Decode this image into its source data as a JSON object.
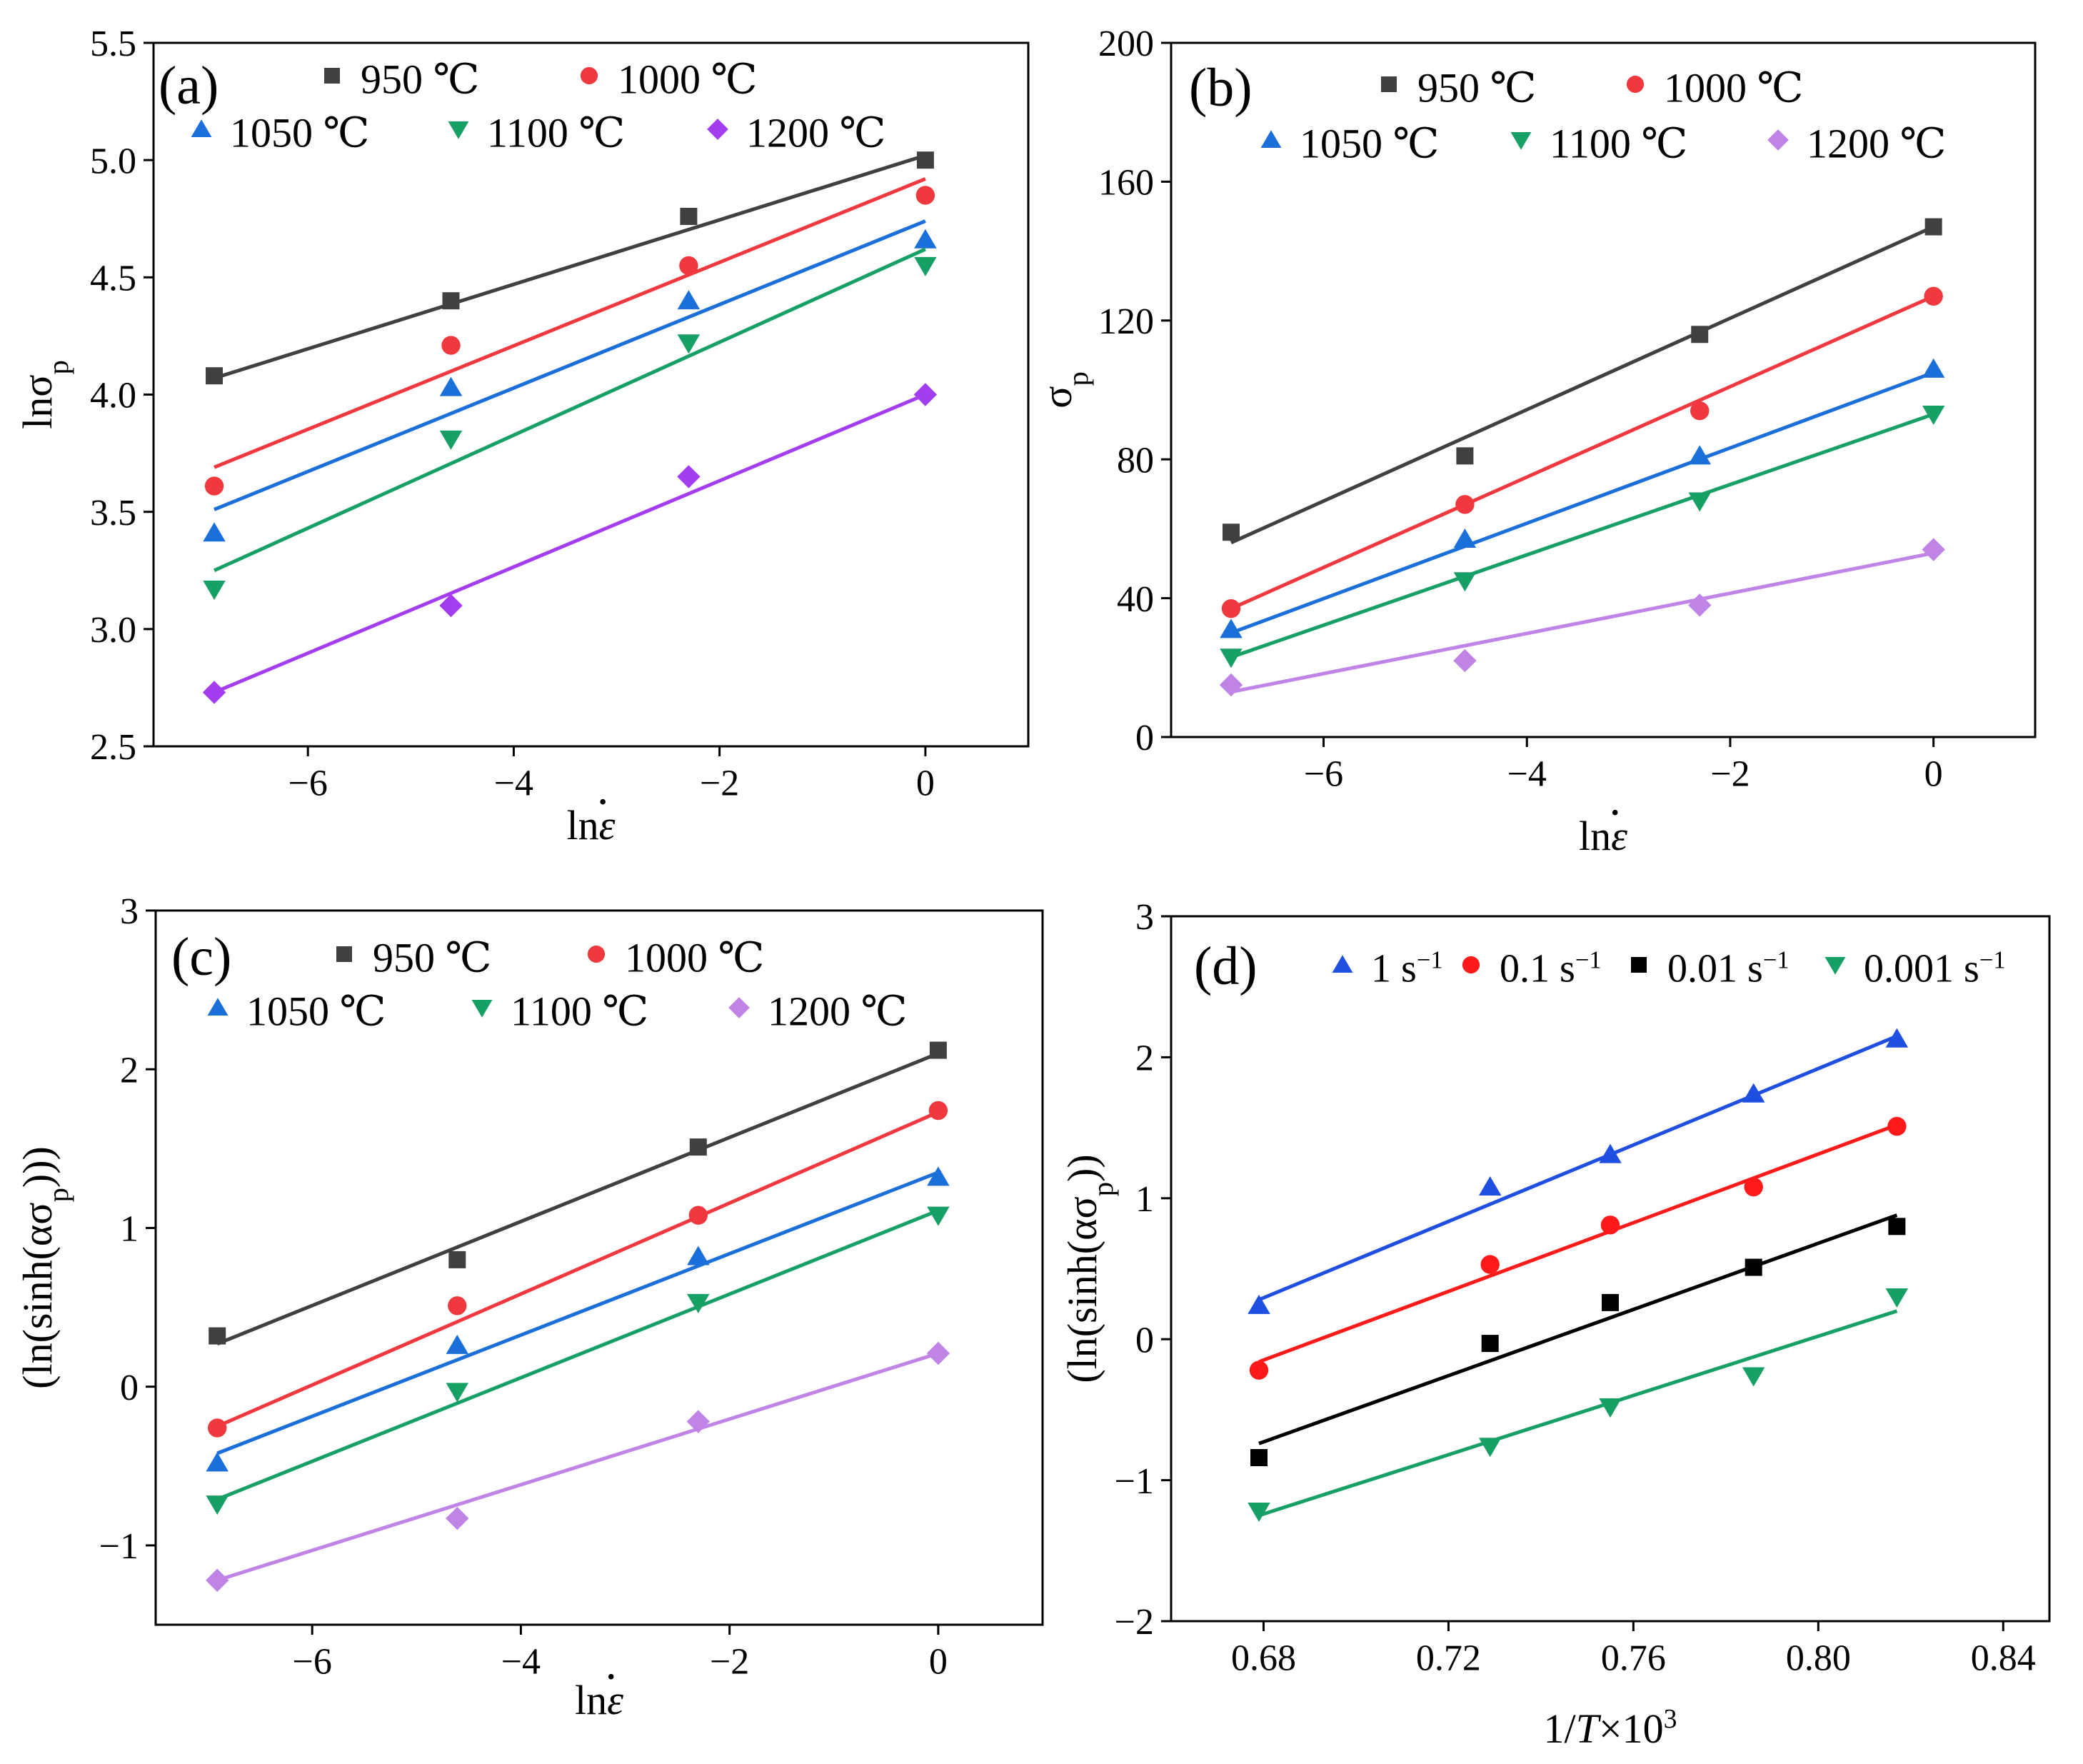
{
  "chart_data": [
    {
      "panel_label": "(a)",
      "type": "scatter",
      "xlabel_base": "ln",
      "xlabel_var": "ε",
      "xlabel_dot": "•",
      "ylabel_base": "lnσ",
      "ylabel_sub": "p",
      "xlim": [
        -7.5,
        1.0
      ],
      "ylim": [
        2.5,
        5.5
      ],
      "xticks": [
        -6,
        -4,
        -2,
        0
      ],
      "xticklabels": [
        "−6",
        "−4",
        "−2",
        "0"
      ],
      "yticks": [
        2.5,
        3.0,
        3.5,
        4.0,
        4.5,
        5.0,
        5.5
      ],
      "yticklabels": [
        "2.5",
        "3.0",
        "3.5",
        "4.0",
        "4.5",
        "5.0",
        "5.5"
      ],
      "legend": [
        {
          "row": 0,
          "col": 0,
          "marker": "square",
          "color": "#404040",
          "label": "950 ℃"
        },
        {
          "row": 0,
          "col": 1,
          "marker": "circle",
          "color": "#f0393e",
          "label": "1000 ℃"
        },
        {
          "row": 1,
          "col": 0,
          "marker": "triangle-up",
          "color": "#1a6fd8",
          "label": "1050 ℃"
        },
        {
          "row": 1,
          "col": 1,
          "marker": "triangle-down",
          "color": "#17a065",
          "label": "1100 ℃"
        },
        {
          "row": 1,
          "col": 2,
          "marker": "diamond",
          "color": "#a43df0",
          "label": "1200 ℃"
        }
      ],
      "series": [
        {
          "name": "950 ℃",
          "marker": "square",
          "color": "#404040",
          "x": [
            -6.91,
            -4.61,
            -2.3,
            0
          ],
          "y": [
            4.08,
            4.4,
            4.76,
            5.0
          ],
          "fit": [
            [
              -6.91,
              4.07
            ],
            [
              0,
              5.02
            ]
          ]
        },
        {
          "name": "1000 ℃",
          "marker": "circle",
          "color": "#f0393e",
          "x": [
            -6.91,
            -4.61,
            -2.3,
            0
          ],
          "y": [
            3.61,
            4.21,
            4.55,
            4.85
          ],
          "fit": [
            [
              -6.91,
              3.69
            ],
            [
              0,
              4.92
            ]
          ]
        },
        {
          "name": "1050 ℃",
          "marker": "triangle-up",
          "color": "#1a6fd8",
          "x": [
            -6.91,
            -4.61,
            -2.3,
            0
          ],
          "y": [
            3.41,
            4.03,
            4.4,
            4.66
          ],
          "fit": [
            [
              -6.91,
              3.51
            ],
            [
              0,
              4.74
            ]
          ]
        },
        {
          "name": "1100 ℃",
          "marker": "triangle-down",
          "color": "#17a065",
          "x": [
            -6.91,
            -4.61,
            -2.3,
            0
          ],
          "y": [
            3.17,
            3.81,
            4.22,
            4.55
          ],
          "fit": [
            [
              -6.91,
              3.25
            ],
            [
              0,
              4.62
            ]
          ]
        },
        {
          "name": "1200 ℃",
          "marker": "diamond",
          "color": "#a43df0",
          "x": [
            -6.91,
            -4.61,
            -2.3,
            0
          ],
          "y": [
            2.73,
            3.1,
            3.65,
            4.0
          ],
          "fit": [
            [
              -6.91,
              2.73
            ],
            [
              0,
              4.0
            ]
          ]
        }
      ]
    },
    {
      "panel_label": "(b)",
      "type": "scatter",
      "xlabel_base": "ln",
      "xlabel_var": "ε",
      "xlabel_dot": "•",
      "ylabel_base": "σ",
      "ylabel_sub": "p",
      "xlim": [
        -7.5,
        1.0
      ],
      "ylim": [
        0,
        200
      ],
      "xticks": [
        -6,
        -4,
        -2,
        0
      ],
      "xticklabels": [
        "−6",
        "−4",
        "−2",
        "0"
      ],
      "yticks": [
        0,
        40,
        80,
        120,
        160,
        200
      ],
      "yticklabels": [
        "0",
        "40",
        "80",
        "120",
        "160",
        "200"
      ],
      "legend": [
        {
          "row": 0,
          "col": 0,
          "marker": "square",
          "color": "#404040",
          "label": "950 ℃"
        },
        {
          "row": 0,
          "col": 1,
          "marker": "circle",
          "color": "#f0393e",
          "label": "1000 ℃"
        },
        {
          "row": 1,
          "col": 0,
          "marker": "triangle-up",
          "color": "#1a6fd8",
          "label": "1050 ℃"
        },
        {
          "row": 1,
          "col": 1,
          "marker": "triangle-down",
          "color": "#17a065",
          "label": "1100 ℃"
        },
        {
          "row": 1,
          "col": 2,
          "marker": "diamond",
          "color": "#c083e6",
          "label": "1200 ℃"
        }
      ],
      "series": [
        {
          "name": "950 ℃",
          "marker": "square",
          "color": "#404040",
          "x": [
            -6.91,
            -4.61,
            -2.3,
            0
          ],
          "y": [
            59,
            81,
            116,
            147
          ],
          "fit": [
            [
              -6.91,
              56
            ],
            [
              0,
              147
            ]
          ]
        },
        {
          "name": "1000 ℃",
          "marker": "circle",
          "color": "#f0393e",
          "x": [
            -6.91,
            -4.61,
            -2.3,
            0
          ],
          "y": [
            37,
            67,
            94,
            127
          ],
          "fit": [
            [
              -6.91,
              37
            ],
            [
              0,
              127
            ]
          ]
        },
        {
          "name": "1050 ℃",
          "marker": "triangle-up",
          "color": "#1a6fd8",
          "x": [
            -6.91,
            -4.61,
            -2.3,
            0
          ],
          "y": [
            31,
            57,
            81,
            106
          ],
          "fit": [
            [
              -6.91,
              30
            ],
            [
              0,
              105
            ]
          ]
        },
        {
          "name": "1100 ℃",
          "marker": "triangle-down",
          "color": "#17a065",
          "x": [
            -6.91,
            -4.61,
            -2.3,
            0
          ],
          "y": [
            23,
            45,
            68,
            93
          ],
          "fit": [
            [
              -6.91,
              23
            ],
            [
              0,
              93
            ]
          ]
        },
        {
          "name": "1200 ℃",
          "marker": "diamond",
          "color": "#c083e6",
          "x": [
            -6.91,
            -4.61,
            -2.3,
            0
          ],
          "y": [
            15,
            22,
            38,
            54
          ],
          "fit": [
            [
              -6.91,
              13
            ],
            [
              0,
              53
            ]
          ]
        }
      ]
    },
    {
      "panel_label": "(c)",
      "type": "scatter",
      "xlabel_base": "ln",
      "xlabel_var": "ε",
      "xlabel_dot": "•",
      "ylabel_base": "(ln(sinh(ασ",
      "ylabel_sub": "p",
      "ylabel_tail": ")))",
      "xlim": [
        -7.5,
        1.0
      ],
      "ylim": [
        -1.5,
        3.0
      ],
      "xticks": [
        -6,
        -4,
        -2,
        0
      ],
      "xticklabels": [
        "−6",
        "−4",
        "−2",
        "0"
      ],
      "yticks": [
        -1,
        0,
        1,
        2,
        3
      ],
      "yticklabels": [
        "−1",
        "0",
        "1",
        "2",
        "3"
      ],
      "legend": [
        {
          "row": 0,
          "col": 0,
          "marker": "square",
          "color": "#404040",
          "label": "950 ℃"
        },
        {
          "row": 0,
          "col": 1,
          "marker": "circle",
          "color": "#f0393e",
          "label": "1000 ℃"
        },
        {
          "row": 1,
          "col": 0,
          "marker": "triangle-up",
          "color": "#1a6fd8",
          "label": "1050 ℃"
        },
        {
          "row": 1,
          "col": 1,
          "marker": "triangle-down",
          "color": "#17a065",
          "label": "1100 ℃"
        },
        {
          "row": 1,
          "col": 2,
          "marker": "diamond",
          "color": "#c083e6",
          "label": "1200 ℃"
        }
      ],
      "series": [
        {
          "name": "950 ℃",
          "marker": "square",
          "color": "#404040",
          "x": [
            -6.91,
            -4.61,
            -2.3,
            0
          ],
          "y": [
            0.32,
            0.8,
            1.51,
            2.12
          ],
          "fit": [
            [
              -6.91,
              0.27
            ],
            [
              0,
              2.1
            ]
          ]
        },
        {
          "name": "1000 ℃",
          "marker": "circle",
          "color": "#f0393e",
          "x": [
            -6.91,
            -4.61,
            -2.3,
            0
          ],
          "y": [
            -0.26,
            0.51,
            1.08,
            1.74
          ],
          "fit": [
            [
              -6.91,
              -0.25
            ],
            [
              0,
              1.73
            ]
          ]
        },
        {
          "name": "1050 ℃",
          "marker": "triangle-up",
          "color": "#1a6fd8",
          "x": [
            -6.91,
            -4.61,
            -2.3,
            0
          ],
          "y": [
            -0.48,
            0.26,
            0.82,
            1.32
          ],
          "fit": [
            [
              -6.91,
              -0.42
            ],
            [
              0,
              1.35
            ]
          ]
        },
        {
          "name": "1100 ℃",
          "marker": "triangle-down",
          "color": "#17a065",
          "x": [
            -6.91,
            -4.61,
            -2.3,
            0
          ],
          "y": [
            -0.74,
            -0.03,
            0.53,
            1.08
          ],
          "fit": [
            [
              -6.91,
              -0.71
            ],
            [
              0,
              1.11
            ]
          ]
        },
        {
          "name": "1200 ℃",
          "marker": "diamond",
          "color": "#c083e6",
          "x": [
            -6.91,
            -4.61,
            -2.3,
            0
          ],
          "y": [
            -1.22,
            -0.83,
            -0.22,
            0.21
          ],
          "fit": [
            [
              -6.91,
              -1.22
            ],
            [
              0,
              0.21
            ]
          ]
        }
      ]
    },
    {
      "panel_label": "(d)",
      "type": "scatter",
      "xlabel_base": "1/",
      "xlabel_var": "T",
      "xlabel_tail": "×10",
      "xlabel_sup": "3",
      "ylabel_base": "(ln(sinh(ασ",
      "ylabel_sub": "p",
      "ylabel_tail": "))",
      "xlim": [
        0.66,
        0.85
      ],
      "ylim": [
        -2,
        3
      ],
      "xticks": [
        0.68,
        0.72,
        0.76,
        0.8,
        0.84
      ],
      "xticklabels": [
        "0.68",
        "0.72",
        "0.76",
        "0.80",
        "0.84"
      ],
      "yticks": [
        -2,
        -1,
        0,
        1,
        2,
        3
      ],
      "yticklabels": [
        "−2",
        "−1",
        "0",
        "1",
        "2",
        "3"
      ],
      "legend": [
        {
          "row": 0,
          "col": 0,
          "marker": "triangle-up",
          "color": "#1f4fe0",
          "label": "1 s",
          "sup": "−1"
        },
        {
          "row": 0,
          "col": 1,
          "marker": "circle",
          "color": "#ff1a1a",
          "label": "0.1 s",
          "sup": "−1"
        },
        {
          "row": 0,
          "col": 2,
          "marker": "square",
          "color": "#000000",
          "label": "0.01 s",
          "sup": "−1"
        },
        {
          "row": 0,
          "col": 3,
          "marker": "triangle-down",
          "color": "#17a065",
          "label": "0.001 s",
          "sup": "−1"
        }
      ],
      "series": [
        {
          "name": "1 s⁻¹",
          "marker": "triangle-up",
          "color": "#1f4fe0",
          "x": [
            0.679,
            0.729,
            0.755,
            0.786,
            0.817
          ],
          "y": [
            0.24,
            1.08,
            1.31,
            1.74,
            2.13
          ],
          "fit": [
            [
              0.679,
              0.28
            ],
            [
              0.817,
              2.15
            ]
          ]
        },
        {
          "name": "0.1 s⁻¹",
          "marker": "circle",
          "color": "#ff1a1a",
          "x": [
            0.679,
            0.729,
            0.755,
            0.786,
            0.817
          ],
          "y": [
            -0.22,
            0.53,
            0.81,
            1.08,
            1.51
          ],
          "fit": [
            [
              0.679,
              -0.16
            ],
            [
              0.817,
              1.52
            ]
          ]
        },
        {
          "name": "0.01 s⁻¹",
          "marker": "square",
          "color": "#000000",
          "x": [
            0.679,
            0.729,
            0.755,
            0.786,
            0.817
          ],
          "y": [
            -0.84,
            -0.03,
            0.26,
            0.51,
            0.8
          ],
          "fit": [
            [
              0.679,
              -0.74
            ],
            [
              0.817,
              0.88
            ]
          ]
        },
        {
          "name": "0.001 s⁻¹",
          "marker": "triangle-down",
          "color": "#17a065",
          "x": [
            0.679,
            0.729,
            0.755,
            0.786,
            0.817
          ],
          "y": [
            -1.22,
            -0.76,
            -0.48,
            -0.26,
            0.3
          ],
          "fit": [
            [
              0.679,
              -1.25
            ],
            [
              0.817,
              0.2
            ]
          ]
        }
      ]
    }
  ]
}
